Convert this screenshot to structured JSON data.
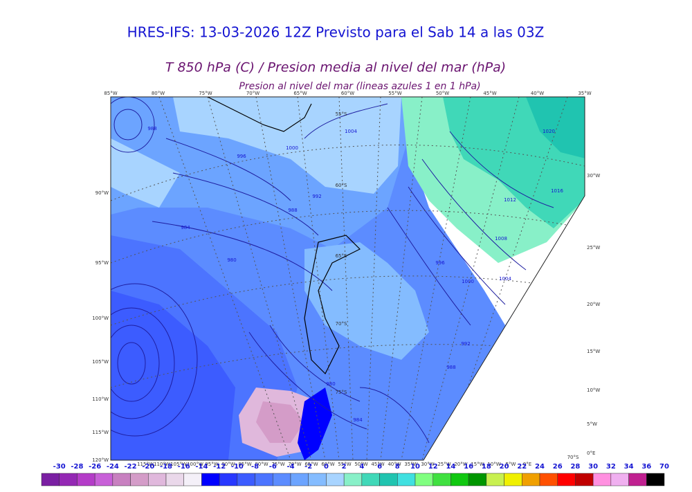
{
  "header": {
    "title": "HRES-IFS: 13-03-2026 12Z Previsto para el Sab 14 a las 03Z",
    "subtitle": "T 850 hPa (C) / Presion media al nivel del mar (hPa)",
    "note": "Presion al nivel del mar (lineas azules 1 en 1 hPa)"
  },
  "map": {
    "top_labels": [
      "85°W",
      "80°W",
      "75°W",
      "70°W",
      "65°W",
      "60°W",
      "55°W",
      "50°W",
      "45°W",
      "40°W",
      "35°W"
    ],
    "left_labels": [
      "90°W",
      "95°W",
      "100°W",
      "105°W",
      "110°W",
      "115°W",
      "120°W"
    ],
    "right_labels": [
      "30°W",
      "25°W",
      "20°W",
      "15°W",
      "10°W",
      "5°W",
      "0°E"
    ],
    "bottom_labels": [
      "115°W",
      "110°W",
      "105°W",
      "100°W",
      "95°W",
      "90°W",
      "85°W",
      "80°W",
      "75°W",
      "70°W",
      "65°W",
      "60°W",
      "55°W",
      "50°W",
      "45°W",
      "40°W",
      "35°W",
      "30°W",
      "25°W",
      "20°W",
      "15°W",
      "10°W",
      "5°W",
      "0°E"
    ],
    "lat_labels": [
      "55°S",
      "60°S",
      "65°S",
      "70°S",
      "75°S",
      "70°S"
    ],
    "contour_labels": [
      "988",
      "1004",
      "1000",
      "996",
      "992",
      "988",
      "984",
      "980",
      "1020",
      "1016",
      "1012",
      "1008",
      "996",
      "1004",
      "1000",
      "992",
      "988",
      "984",
      "980"
    ]
  },
  "colorbar": {
    "ticks": [
      -30,
      -28,
      -26,
      -24,
      -22,
      -20,
      -18,
      -16,
      -14,
      -12,
      -10,
      -8,
      -6,
      -4,
      -2,
      0,
      2,
      4,
      6,
      8,
      10,
      12,
      14,
      16,
      18,
      20,
      22,
      24,
      26,
      28,
      30,
      32,
      34,
      36,
      70
    ],
    "colors": [
      "#7a1fa2",
      "#9428b4",
      "#b43cc8",
      "#c860d8",
      "#c880c0",
      "#d49cc8",
      "#e0b8dc",
      "#ead8ea",
      "#f4f0f8",
      "#0000ff",
      "#2838ff",
      "#3c5cff",
      "#4c74ff",
      "#5c8cff",
      "#6ca4ff",
      "#84bcff",
      "#a8d4ff",
      "#88f0c8",
      "#40d8b8",
      "#20c4b0",
      "#40e0e0",
      "#80ff80",
      "#40e040",
      "#10c810",
      "#009600",
      "#c8f050",
      "#f0f000",
      "#f0a000",
      "#ff5000",
      "#ff0000",
      "#c00000",
      "#ff90e0",
      "#f0b0f0",
      "#c02090",
      "#000000"
    ]
  }
}
